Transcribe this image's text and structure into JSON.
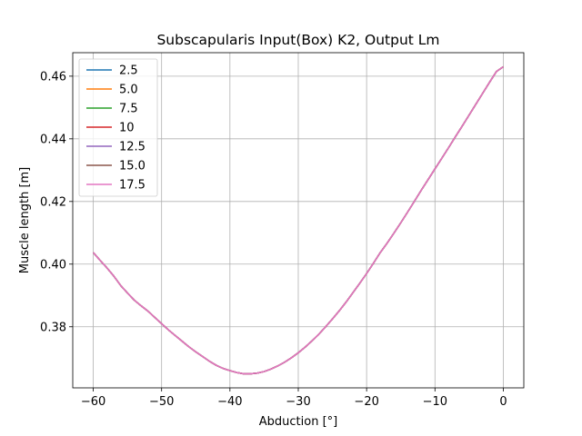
{
  "chart_data": {
    "type": "line",
    "title": "Subscapularis Input(Box) K2, Output Lm",
    "xlabel": "Abduction [°]",
    "ylabel": "Muscle length [m]",
    "xlim": [
      -63,
      3
    ],
    "ylim": [
      0.3605,
      0.4675
    ],
    "xticks": [
      -60,
      -50,
      -40,
      -30,
      -20,
      -10,
      0
    ],
    "yticks": [
      0.38,
      0.4,
      0.42,
      0.44,
      0.46
    ],
    "grid": true,
    "legend_position": "top-left",
    "x": [
      -60,
      -59,
      -58,
      -57,
      -56,
      -55,
      -54,
      -53,
      -52,
      -51,
      -50,
      -49,
      -48,
      -47,
      -46,
      -45,
      -44,
      -43,
      -42,
      -41,
      -40,
      -39,
      -38,
      -37,
      -36,
      -35,
      -34,
      -33,
      -32,
      -31,
      -30,
      -29,
      -28,
      -27,
      -26,
      -25,
      -24,
      -23,
      -22,
      -21,
      -20,
      -19,
      -18,
      -17,
      -16,
      -15,
      -14,
      -13,
      -12,
      -11,
      -10,
      -9,
      -8,
      -7,
      -6,
      -5,
      -4,
      -3,
      -2,
      -1,
      0
    ],
    "series": [
      {
        "name": "2.5",
        "color": "#1f77b4",
        "values": [
          0.4037,
          0.4012,
          0.3988,
          0.3962,
          0.3932,
          0.3908,
          0.3885,
          0.3867,
          0.385,
          0.383,
          0.381,
          0.379,
          0.3772,
          0.3754,
          0.3736,
          0.372,
          0.3705,
          0.369,
          0.3677,
          0.3667,
          0.366,
          0.3654,
          0.365,
          0.365,
          0.3652,
          0.3657,
          0.3665,
          0.3675,
          0.3687,
          0.3701,
          0.3717,
          0.3735,
          0.3755,
          0.3776,
          0.38,
          0.3825,
          0.3851,
          0.3879,
          0.3909,
          0.3939,
          0.397,
          0.4003,
          0.4037,
          0.4067,
          0.4099,
          0.4132,
          0.4166,
          0.4201,
          0.4236,
          0.427,
          0.4304,
          0.4338,
          0.4372,
          0.4407,
          0.4441,
          0.4476,
          0.4511,
          0.4546,
          0.4581,
          0.4615,
          0.463
        ]
      },
      {
        "name": "5.0",
        "color": "#ff7f0e",
        "values": [
          0.4037,
          0.4012,
          0.3988,
          0.3962,
          0.3932,
          0.3908,
          0.3885,
          0.3867,
          0.385,
          0.383,
          0.381,
          0.379,
          0.3772,
          0.3754,
          0.3736,
          0.372,
          0.3705,
          0.369,
          0.3677,
          0.3667,
          0.366,
          0.3654,
          0.365,
          0.365,
          0.3652,
          0.3657,
          0.3665,
          0.3675,
          0.3687,
          0.3701,
          0.3717,
          0.3735,
          0.3755,
          0.3776,
          0.38,
          0.3825,
          0.3851,
          0.3879,
          0.3909,
          0.3939,
          0.397,
          0.4003,
          0.4037,
          0.4067,
          0.4099,
          0.4132,
          0.4166,
          0.4201,
          0.4236,
          0.427,
          0.4304,
          0.4338,
          0.4372,
          0.4407,
          0.4441,
          0.4476,
          0.4511,
          0.4546,
          0.4581,
          0.4615,
          0.463
        ]
      },
      {
        "name": "7.5",
        "color": "#2ca02c",
        "values": [
          0.4037,
          0.4012,
          0.3988,
          0.3962,
          0.3932,
          0.3908,
          0.3885,
          0.3867,
          0.385,
          0.383,
          0.381,
          0.379,
          0.3772,
          0.3754,
          0.3736,
          0.372,
          0.3705,
          0.369,
          0.3677,
          0.3667,
          0.366,
          0.3654,
          0.365,
          0.365,
          0.3652,
          0.3657,
          0.3665,
          0.3675,
          0.3687,
          0.3701,
          0.3717,
          0.3735,
          0.3755,
          0.3776,
          0.38,
          0.3825,
          0.3851,
          0.3879,
          0.3909,
          0.3939,
          0.397,
          0.4003,
          0.4037,
          0.4067,
          0.4099,
          0.4132,
          0.4166,
          0.4201,
          0.4236,
          0.427,
          0.4304,
          0.4338,
          0.4372,
          0.4407,
          0.4441,
          0.4476,
          0.4511,
          0.4546,
          0.4581,
          0.4615,
          0.463
        ]
      },
      {
        "name": "10",
        "color": "#d62728",
        "values": [
          0.4037,
          0.4012,
          0.3988,
          0.3962,
          0.3932,
          0.3908,
          0.3885,
          0.3867,
          0.385,
          0.383,
          0.381,
          0.379,
          0.3772,
          0.3754,
          0.3736,
          0.372,
          0.3705,
          0.369,
          0.3677,
          0.3667,
          0.366,
          0.3654,
          0.365,
          0.365,
          0.3652,
          0.3657,
          0.3665,
          0.3675,
          0.3687,
          0.3701,
          0.3717,
          0.3735,
          0.3755,
          0.3776,
          0.38,
          0.3825,
          0.3851,
          0.3879,
          0.3909,
          0.3939,
          0.397,
          0.4003,
          0.4037,
          0.4067,
          0.4099,
          0.4132,
          0.4166,
          0.4201,
          0.4236,
          0.427,
          0.4304,
          0.4338,
          0.4372,
          0.4407,
          0.4441,
          0.4476,
          0.4511,
          0.4546,
          0.4581,
          0.4615,
          0.463
        ]
      },
      {
        "name": "12.5",
        "color": "#9467bd",
        "values": [
          0.4037,
          0.4012,
          0.3988,
          0.3962,
          0.3932,
          0.3908,
          0.3885,
          0.3867,
          0.385,
          0.383,
          0.381,
          0.379,
          0.3772,
          0.3754,
          0.3736,
          0.372,
          0.3705,
          0.369,
          0.3677,
          0.3667,
          0.366,
          0.3654,
          0.365,
          0.365,
          0.3652,
          0.3657,
          0.3665,
          0.3675,
          0.3687,
          0.3701,
          0.3717,
          0.3735,
          0.3755,
          0.3776,
          0.38,
          0.3825,
          0.3851,
          0.3879,
          0.3909,
          0.3939,
          0.397,
          0.4003,
          0.4037,
          0.4067,
          0.4099,
          0.4132,
          0.4166,
          0.4201,
          0.4236,
          0.427,
          0.4304,
          0.4338,
          0.4372,
          0.4407,
          0.4441,
          0.4476,
          0.4511,
          0.4546,
          0.4581,
          0.4615,
          0.463
        ]
      },
      {
        "name": "15.0",
        "color": "#8c564b",
        "values": [
          0.4037,
          0.4012,
          0.3988,
          0.3962,
          0.3932,
          0.3908,
          0.3885,
          0.3867,
          0.385,
          0.383,
          0.381,
          0.379,
          0.3772,
          0.3754,
          0.3736,
          0.372,
          0.3705,
          0.369,
          0.3677,
          0.3667,
          0.366,
          0.3654,
          0.365,
          0.365,
          0.3652,
          0.3657,
          0.3665,
          0.3675,
          0.3687,
          0.3701,
          0.3717,
          0.3735,
          0.3755,
          0.3776,
          0.38,
          0.3825,
          0.3851,
          0.3879,
          0.3909,
          0.3939,
          0.397,
          0.4003,
          0.4037,
          0.4067,
          0.4099,
          0.4132,
          0.4166,
          0.4201,
          0.4236,
          0.427,
          0.4304,
          0.4338,
          0.4372,
          0.4407,
          0.4441,
          0.4476,
          0.4511,
          0.4546,
          0.4581,
          0.4615,
          0.463
        ]
      },
      {
        "name": "17.5",
        "color": "#e377c2",
        "values": [
          0.4037,
          0.4012,
          0.3988,
          0.3962,
          0.3932,
          0.3908,
          0.3885,
          0.3867,
          0.385,
          0.383,
          0.381,
          0.379,
          0.3772,
          0.3754,
          0.3736,
          0.372,
          0.3705,
          0.369,
          0.3677,
          0.3667,
          0.366,
          0.3654,
          0.365,
          0.365,
          0.3652,
          0.3657,
          0.3665,
          0.3675,
          0.3687,
          0.3701,
          0.3717,
          0.3735,
          0.3755,
          0.3776,
          0.38,
          0.3825,
          0.3851,
          0.3879,
          0.3909,
          0.3939,
          0.397,
          0.4003,
          0.4037,
          0.4067,
          0.4099,
          0.4132,
          0.4166,
          0.4201,
          0.4236,
          0.427,
          0.4304,
          0.4338,
          0.4372,
          0.4407,
          0.4441,
          0.4476,
          0.4511,
          0.4546,
          0.4581,
          0.4615,
          0.463
        ]
      }
    ]
  }
}
